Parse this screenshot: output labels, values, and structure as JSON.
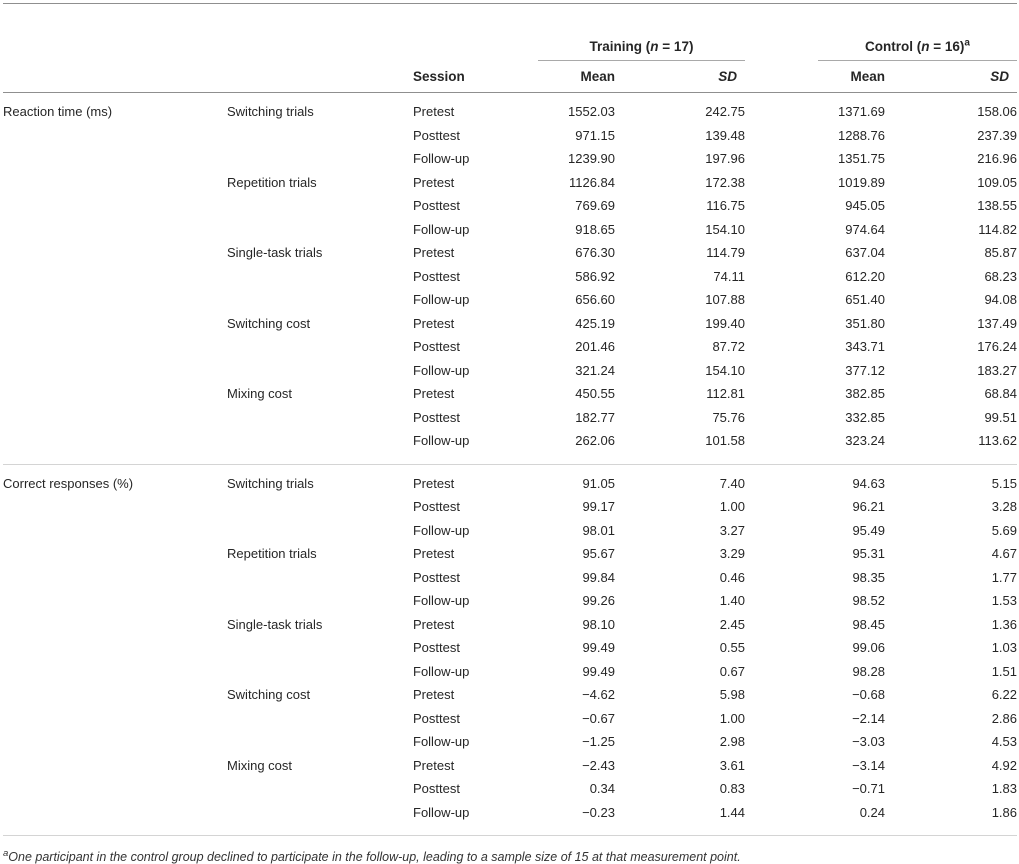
{
  "header": {
    "session_label": "Session",
    "mean_label": "Mean",
    "sd_label": "SD",
    "training": {
      "prefix": "Training (",
      "n": "n",
      "suffix": " = 17)",
      "sup": ""
    },
    "control": {
      "prefix": "Control (",
      "n": "n",
      "suffix": " = 16)",
      "sup": "a"
    }
  },
  "sections": [
    {
      "measure": "Reaction time (ms)",
      "groups": [
        {
          "trial": "Switching trials",
          "rows": [
            {
              "session": "Pretest",
              "t_mean": "1552.03",
              "t_sd": "242.75",
              "c_mean": "1371.69",
              "c_sd": "158.06"
            },
            {
              "session": "Posttest",
              "t_mean": "971.15",
              "t_sd": "139.48",
              "c_mean": "1288.76",
              "c_sd": "237.39"
            },
            {
              "session": "Follow-up",
              "t_mean": "1239.90",
              "t_sd": "197.96",
              "c_mean": "1351.75",
              "c_sd": "216.96"
            }
          ]
        },
        {
          "trial": "Repetition trials",
          "rows": [
            {
              "session": "Pretest",
              "t_mean": "1126.84",
              "t_sd": "172.38",
              "c_mean": "1019.89",
              "c_sd": "109.05"
            },
            {
              "session": "Posttest",
              "t_mean": "769.69",
              "t_sd": "116.75",
              "c_mean": "945.05",
              "c_sd": "138.55"
            },
            {
              "session": "Follow-up",
              "t_mean": "918.65",
              "t_sd": "154.10",
              "c_mean": "974.64",
              "c_sd": "114.82"
            }
          ]
        },
        {
          "trial": "Single-task trials",
          "rows": [
            {
              "session": "Pretest",
              "t_mean": "676.30",
              "t_sd": "114.79",
              "c_mean": "637.04",
              "c_sd": "85.87"
            },
            {
              "session": "Posttest",
              "t_mean": "586.92",
              "t_sd": "74.11",
              "c_mean": "612.20",
              "c_sd": "68.23"
            },
            {
              "session": "Follow-up",
              "t_mean": "656.60",
              "t_sd": "107.88",
              "c_mean": "651.40",
              "c_sd": "94.08"
            }
          ]
        },
        {
          "trial": "Switching cost",
          "rows": [
            {
              "session": "Pretest",
              "t_mean": "425.19",
              "t_sd": "199.40",
              "c_mean": "351.80",
              "c_sd": "137.49"
            },
            {
              "session": "Posttest",
              "t_mean": "201.46",
              "t_sd": "87.72",
              "c_mean": "343.71",
              "c_sd": "176.24"
            },
            {
              "session": "Follow-up",
              "t_mean": "321.24",
              "t_sd": "154.10",
              "c_mean": "377.12",
              "c_sd": "183.27"
            }
          ]
        },
        {
          "trial": "Mixing cost",
          "rows": [
            {
              "session": "Pretest",
              "t_mean": "450.55",
              "t_sd": "112.81",
              "c_mean": "382.85",
              "c_sd": "68.84"
            },
            {
              "session": "Posttest",
              "t_mean": "182.77",
              "t_sd": "75.76",
              "c_mean": "332.85",
              "c_sd": "99.51"
            },
            {
              "session": "Follow-up",
              "t_mean": "262.06",
              "t_sd": "101.58",
              "c_mean": "323.24",
              "c_sd": "113.62"
            }
          ]
        }
      ]
    },
    {
      "measure": "Correct responses (%)",
      "groups": [
        {
          "trial": "Switching trials",
          "rows": [
            {
              "session": "Pretest",
              "t_mean": "91.05",
              "t_sd": "7.40",
              "c_mean": "94.63",
              "c_sd": "5.15"
            },
            {
              "session": "Posttest",
              "t_mean": "99.17",
              "t_sd": "1.00",
              "c_mean": "96.21",
              "c_sd": "3.28"
            },
            {
              "session": "Follow-up",
              "t_mean": "98.01",
              "t_sd": "3.27",
              "c_mean": "95.49",
              "c_sd": "5.69"
            }
          ]
        },
        {
          "trial": "Repetition trials",
          "rows": [
            {
              "session": "Pretest",
              "t_mean": "95.67",
              "t_sd": "3.29",
              "c_mean": "95.31",
              "c_sd": "4.67"
            },
            {
              "session": "Posttest",
              "t_mean": "99.84",
              "t_sd": "0.46",
              "c_mean": "98.35",
              "c_sd": "1.77"
            },
            {
              "session": "Follow-up",
              "t_mean": "99.26",
              "t_sd": "1.40",
              "c_mean": "98.52",
              "c_sd": "1.53"
            }
          ]
        },
        {
          "trial": "Single-task trials",
          "rows": [
            {
              "session": "Pretest",
              "t_mean": "98.10",
              "t_sd": "2.45",
              "c_mean": "98.45",
              "c_sd": "1.36"
            },
            {
              "session": "Posttest",
              "t_mean": "99.49",
              "t_sd": "0.55",
              "c_mean": "99.06",
              "c_sd": "1.03"
            },
            {
              "session": "Follow-up",
              "t_mean": "99.49",
              "t_sd": "0.67",
              "c_mean": "98.28",
              "c_sd": "1.51"
            }
          ]
        },
        {
          "trial": "Switching cost",
          "rows": [
            {
              "session": "Pretest",
              "t_mean": "−4.62",
              "t_sd": "5.98",
              "c_mean": "−0.68",
              "c_sd": "6.22"
            },
            {
              "session": "Posttest",
              "t_mean": "−0.67",
              "t_sd": "1.00",
              "c_mean": "−2.14",
              "c_sd": "2.86"
            },
            {
              "session": "Follow-up",
              "t_mean": "−1.25",
              "t_sd": "2.98",
              "c_mean": "−3.03",
              "c_sd": "4.53"
            }
          ]
        },
        {
          "trial": "Mixing cost",
          "rows": [
            {
              "session": "Pretest",
              "t_mean": "−2.43",
              "t_sd": "3.61",
              "c_mean": "−3.14",
              "c_sd": "4.92"
            },
            {
              "session": "Posttest",
              "t_mean": "0.34",
              "t_sd": "0.83",
              "c_mean": "−0.71",
              "c_sd": "1.83"
            },
            {
              "session": "Follow-up",
              "t_mean": "−0.23",
              "t_sd": "1.44",
              "c_mean": "0.24",
              "c_sd": "1.86"
            }
          ]
        }
      ]
    }
  ],
  "footnote": {
    "marker": "a",
    "text": "One participant in the control group declined to participate in the follow-up, leading to a sample size of 15 at that measurement point."
  }
}
